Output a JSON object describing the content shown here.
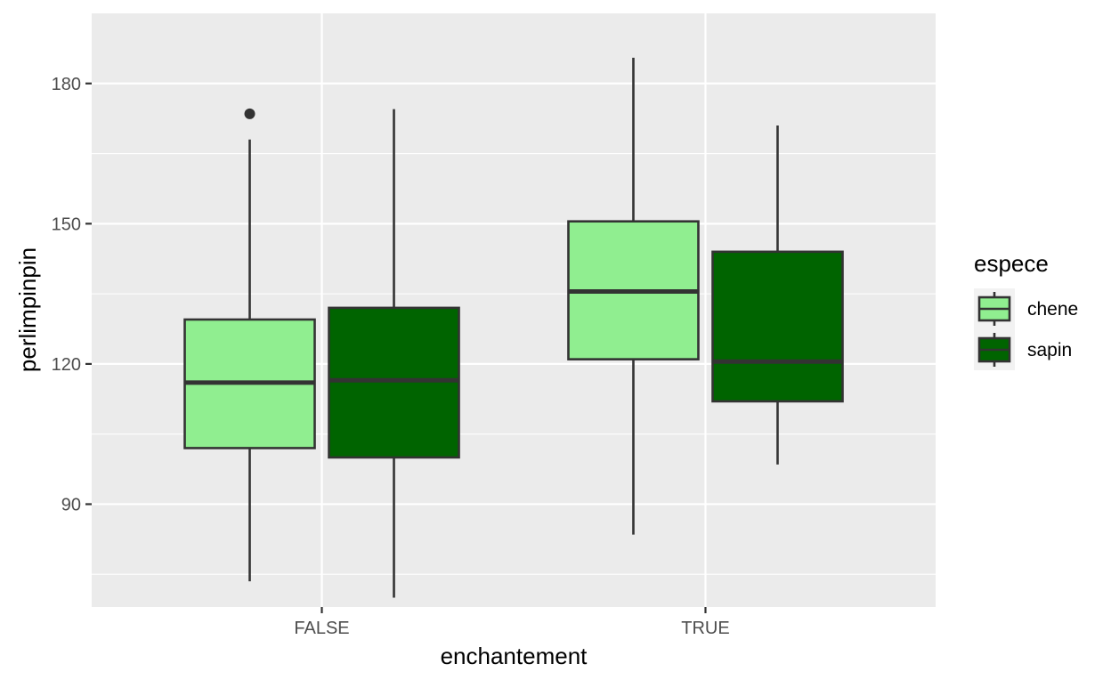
{
  "chart_data": {
    "type": "boxplot",
    "xlabel": "enchantement",
    "ylabel": "perlimpinpin",
    "categories": [
      "FALSE",
      "TRUE"
    ],
    "ylim": [
      68,
      195
    ],
    "y_ticks": [
      90,
      120,
      150,
      180
    ],
    "grid": true,
    "legend": {
      "title": "espece",
      "placement": "right"
    },
    "series": [
      {
        "name": "chene",
        "color": "#90EE90",
        "boxes": [
          {
            "category": "FALSE",
            "whisker_low": 73.5,
            "q1": 102,
            "median": 116,
            "q3": 129.5,
            "whisker_high": 168,
            "outliers": [
              173.5
            ]
          },
          {
            "category": "TRUE",
            "whisker_low": 83.5,
            "q1": 121,
            "median": 135.5,
            "q3": 150.5,
            "whisker_high": 185.5,
            "outliers": []
          }
        ]
      },
      {
        "name": "sapin",
        "color": "#006400",
        "boxes": [
          {
            "category": "FALSE",
            "whisker_low": 70,
            "q1": 100,
            "median": 116.5,
            "q3": 132,
            "whisker_high": 174.5,
            "outliers": []
          },
          {
            "category": "TRUE",
            "whisker_low": 98.5,
            "q1": 112,
            "median": 120.5,
            "q3": 144,
            "whisker_high": 171,
            "outliers": []
          }
        ]
      }
    ]
  }
}
